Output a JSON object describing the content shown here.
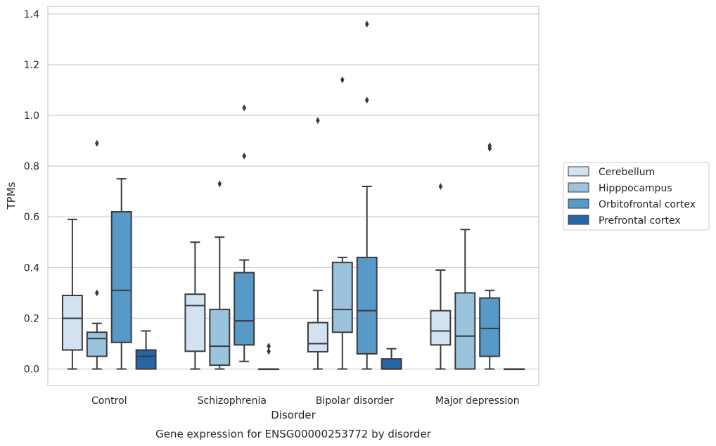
{
  "chart_data": {
    "type": "box",
    "title": "",
    "caption": "Gene expression for ENSG00000253772 by disorder",
    "xlabel": "Disorder",
    "ylabel": "TPMs",
    "ylim": [
      -0.065,
      1.43
    ],
    "yticks": [
      "0.0",
      "0.2",
      "0.4",
      "0.6",
      "0.8",
      "1.0",
      "1.2",
      "1.4"
    ],
    "ytick_values": [
      0,
      0.2,
      0.4,
      0.6,
      0.8,
      1.0,
      1.2,
      1.4
    ],
    "grid": "horizontal",
    "legend_position": "right",
    "categories": [
      "Control",
      "Schizophrenia",
      "Bipolar disorder",
      "Major depression"
    ],
    "series": [
      {
        "name": "Cerebellum",
        "color": "#d3e2f1",
        "boxes": [
          {
            "min": 0.0,
            "q1": 0.075,
            "median": 0.2,
            "q3": 0.29,
            "max": 0.59,
            "outliers": []
          },
          {
            "min": 0.0,
            "q1": 0.07,
            "median": 0.25,
            "q3": 0.295,
            "max": 0.5,
            "outliers": []
          },
          {
            "min": 0.0,
            "q1": 0.068,
            "median": 0.1,
            "q3": 0.183,
            "max": 0.31,
            "outliers": [
              0.98
            ]
          },
          {
            "min": 0.0,
            "q1": 0.095,
            "median": 0.15,
            "q3": 0.23,
            "max": 0.39,
            "outliers": [
              0.72
            ]
          }
        ]
      },
      {
        "name": "Hipppocampus",
        "color": "#9ac4de",
        "boxes": [
          {
            "min": 0.0,
            "q1": 0.05,
            "median": 0.12,
            "q3": 0.145,
            "max": 0.18,
            "outliers": [
              0.3,
              0.89
            ]
          },
          {
            "min": 0.0,
            "q1": 0.015,
            "median": 0.09,
            "q3": 0.235,
            "max": 0.52,
            "outliers": [
              0.73
            ]
          },
          {
            "min": 0.0,
            "q1": 0.145,
            "median": 0.235,
            "q3": 0.42,
            "max": 0.44,
            "outliers": [
              1.14
            ]
          },
          {
            "min": 0.0,
            "q1": 0.0,
            "median": 0.13,
            "q3": 0.3,
            "max": 0.55,
            "outliers": []
          }
        ]
      },
      {
        "name": "Orbitofrontal cortex",
        "color": "#5799c7",
        "boxes": [
          {
            "min": 0.0,
            "q1": 0.105,
            "median": 0.31,
            "q3": 0.62,
            "max": 0.75,
            "outliers": []
          },
          {
            "min": 0.03,
            "q1": 0.095,
            "median": 0.19,
            "q3": 0.38,
            "max": 0.43,
            "outliers": [
              0.84,
              1.03
            ]
          },
          {
            "min": 0.0,
            "q1": 0.06,
            "median": 0.23,
            "q3": 0.44,
            "max": 0.72,
            "outliers": [
              1.06,
              1.36
            ]
          },
          {
            "min": 0.0,
            "q1": 0.05,
            "median": 0.16,
            "q3": 0.28,
            "max": 0.31,
            "outliers": [
              0.87,
              0.88
            ]
          }
        ]
      },
      {
        "name": "Prefrontal cortex",
        "color": "#2565a8",
        "boxes": [
          {
            "min": 0.0,
            "q1": 0.0,
            "median": 0.05,
            "q3": 0.075,
            "max": 0.15,
            "outliers": []
          },
          {
            "min": 0.0,
            "q1": 0.0,
            "median": 0.0,
            "q3": 0.0,
            "max": 0.0,
            "outliers": [
              0.07,
              0.09
            ]
          },
          {
            "min": 0.0,
            "q1": 0.0,
            "median": 0.0,
            "q3": 0.04,
            "max": 0.08,
            "outliers": []
          },
          {
            "min": 0.0,
            "q1": 0.0,
            "median": 0.0,
            "q3": 0.0,
            "max": 0.0,
            "outliers": []
          }
        ]
      }
    ]
  }
}
